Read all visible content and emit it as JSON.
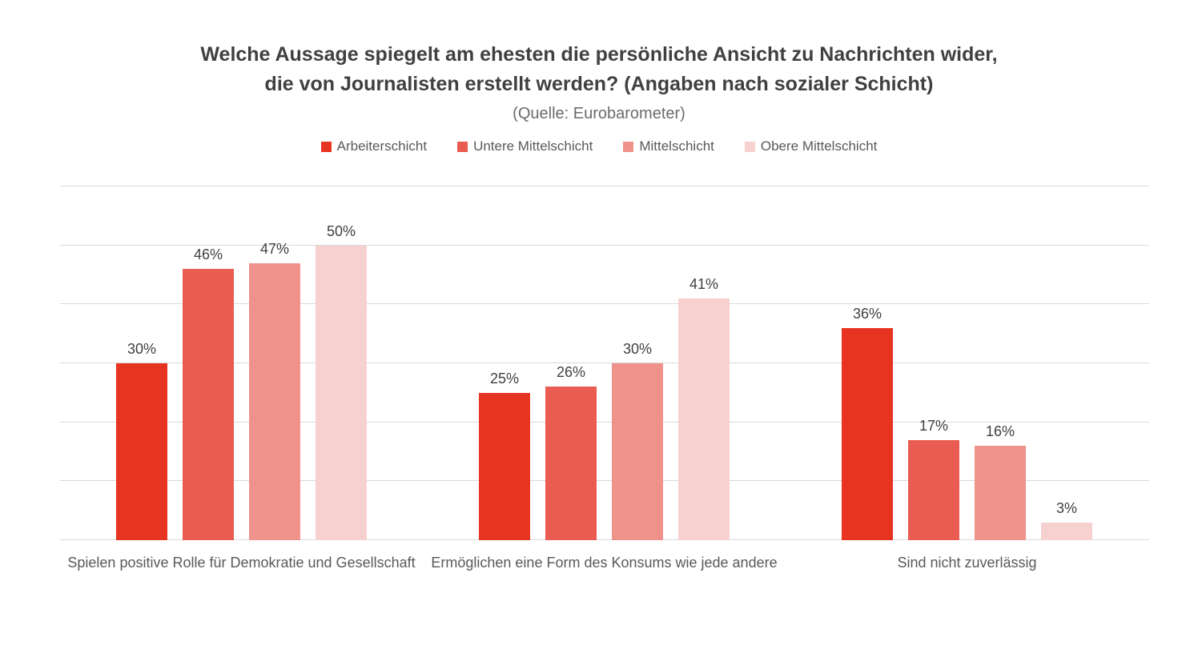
{
  "title": {
    "line1": "Welche Aussage spiegelt am ehesten die persönliche Ansicht zu Nachrichten wider,",
    "line2": "die von Journalisten erstellt werden? (Angaben nach sozialer Schicht)",
    "source": "(Quelle: Eurobarometer)"
  },
  "chart_data": {
    "type": "bar",
    "title": "Welche Aussage spiegelt am ehesten die persönliche Ansicht zu Nachrichten wider, die von Journalisten erstellt werden? (Angaben nach sozialer Schicht)",
    "subtitle": "(Quelle: Eurobarometer)",
    "categories": [
      "Spielen positive Rolle für Demokratie und Gesellschaft",
      "Ermöglichen eine Form des Konsums wie jede andere",
      "Sind nicht zuverlässig"
    ],
    "series": [
      {
        "name": "Arbeiterschicht",
        "color": "#e73421",
        "values": [
          30,
          25,
          36
        ]
      },
      {
        "name": "Untere Mittelschicht",
        "color": "#ea5b52",
        "values": [
          46,
          26,
          17
        ]
      },
      {
        "name": "Mittelschicht",
        "color": "#f0928c",
        "values": [
          47,
          30,
          16
        ]
      },
      {
        "name": "Obere Mittelschicht",
        "color": "#f7d0d0",
        "values": [
          50,
          41,
          3
        ]
      }
    ],
    "value_suffix": "%",
    "ylim": [
      0,
      60
    ],
    "gridline_step": 10,
    "grid": true,
    "y_axis_labels_visible": false,
    "legend_position": "top",
    "gridline_color": "#d9d9d9"
  }
}
